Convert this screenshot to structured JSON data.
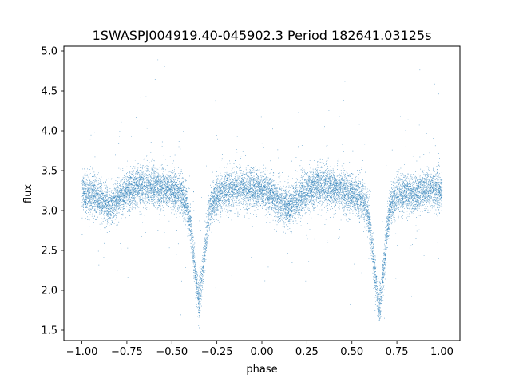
{
  "colors": {
    "point": "#1f77b4",
    "axes": "#000000",
    "background": "#ffffff"
  },
  "chart_data": {
    "type": "scatter",
    "title": "1SWASPJ004919.40-045902.3 Period 182641.03125s",
    "xlabel": "phase",
    "ylabel": "flux",
    "xlim": [
      -1.1,
      1.1
    ],
    "ylim": [
      1.37,
      5.06
    ],
    "x_ticks": [
      -1.0,
      -0.75,
      -0.5,
      -0.25,
      0.0,
      0.25,
      0.5,
      0.75,
      1.0
    ],
    "x_tick_labels": [
      "−1.00",
      "−0.75",
      "−0.50",
      "−0.25",
      "0.00",
      "0.25",
      "0.50",
      "0.75",
      "1.00"
    ],
    "y_ticks": [
      1.5,
      2.0,
      2.5,
      3.0,
      3.5,
      4.0,
      4.5,
      5.0
    ],
    "y_tick_labels": [
      "1.5",
      "2.0",
      "2.5",
      "3.0",
      "3.5",
      "4.0",
      "4.5",
      "5.0"
    ],
    "grid": false,
    "legend": "none",
    "series": [
      {
        "marker_size": 0.7,
        "profile": {
          "x": [
            -1.0,
            -0.95,
            -0.9,
            -0.85,
            -0.8,
            -0.75,
            -0.7,
            -0.65,
            -0.6,
            -0.55,
            -0.5,
            -0.45,
            -0.42,
            -0.4,
            -0.38,
            -0.36,
            -0.35,
            -0.34,
            -0.32,
            -0.3,
            -0.28,
            -0.25,
            -0.2,
            -0.15,
            -0.1,
            -0.05,
            0.0,
            0.05,
            0.1,
            0.15,
            0.2,
            0.25,
            0.3,
            0.35,
            0.4,
            0.45,
            0.5,
            0.55,
            0.58,
            0.6,
            0.62,
            0.64,
            0.65,
            0.66,
            0.68,
            0.7,
            0.72,
            0.75,
            0.8,
            0.85,
            0.9,
            0.95,
            1.0
          ],
          "y": [
            3.2,
            3.22,
            3.15,
            3.05,
            3.15,
            3.25,
            3.3,
            3.32,
            3.3,
            3.28,
            3.25,
            3.2,
            3.1,
            2.85,
            2.4,
            2.0,
            1.85,
            2.0,
            2.45,
            2.9,
            3.1,
            3.2,
            3.25,
            3.28,
            3.3,
            3.28,
            3.25,
            3.2,
            3.1,
            3.05,
            3.15,
            3.25,
            3.3,
            3.32,
            3.28,
            3.25,
            3.2,
            3.15,
            3.05,
            2.8,
            2.35,
            1.95,
            1.82,
            1.95,
            2.4,
            2.85,
            3.1,
            3.2,
            3.22,
            3.2,
            3.25,
            3.28,
            3.25
          ]
        },
        "scatter_sd": 0.12,
        "n_points": 15000
      }
    ]
  }
}
